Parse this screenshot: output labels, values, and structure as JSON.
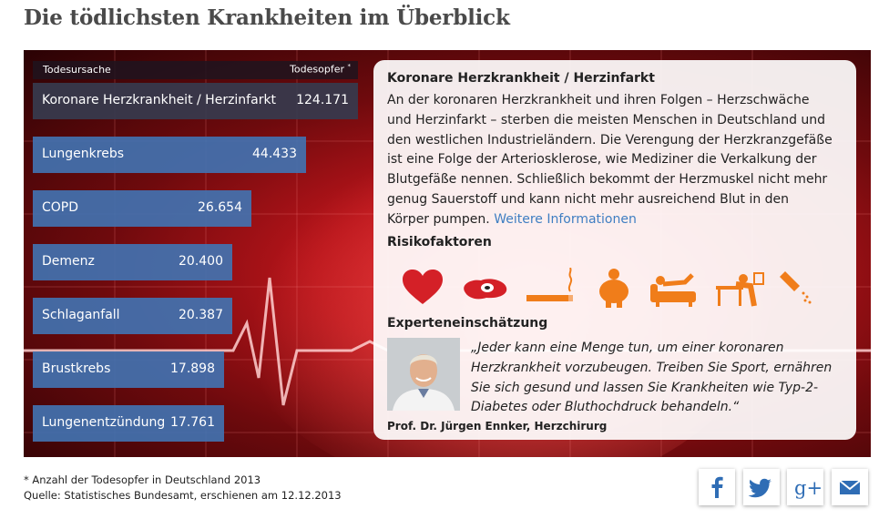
{
  "title": "Die tödlichsten Krankheiten im Überblick",
  "table": {
    "col_cause": "Todesursache",
    "col_deaths": "Todesopfer",
    "col_deaths_mark": "*",
    "rows": [
      {
        "label": "Koronare Herzkrankheit / Herzinfarkt",
        "value": "124.171",
        "deaths": 124171
      },
      {
        "label": "Lungenkrebs",
        "value": "44.433",
        "deaths": 44433
      },
      {
        "label": "COPD",
        "value": "26.654",
        "deaths": 26654
      },
      {
        "label": "Demenz",
        "value": "20.400",
        "deaths": 20400
      },
      {
        "label": "Schlaganfall",
        "value": "20.387",
        "deaths": 20387
      },
      {
        "label": "Brustkrebs",
        "value": "17.898",
        "deaths": 17898
      },
      {
        "label": "Lungenentzündung",
        "value": "17.761",
        "deaths": 17761
      }
    ]
  },
  "panel": {
    "title": "Koronare Herzkrankheit / Herzinfarkt",
    "text": "An der koronaren Herzkrankheit und ihren Folgen – Herzschwäche und Herzinfarkt – sterben die meisten Menschen in Deutschland und den westlichen Industrieländern. Die Verengung der Herzkranzgefäße ist eine Folge der Arteriosklerose, wie Mediziner die Verkalkung der Blutgefäße nennen. Schließlich bekommt der Herzmuskel nicht mehr genug Sauerstoff und kann nicht mehr ausreichend Blut in den Körper pumpen.",
    "link": "Weitere Informationen",
    "risk_title": "Risikofaktoren",
    "risk_icons": [
      "heart-icon",
      "egg-icon",
      "cigarette-icon",
      "obese-person-icon",
      "couch-person-icon",
      "desk-stress-icon",
      "salt-shaker-icon"
    ],
    "expert_title": "Experteneinschätzung",
    "quote": "„Jeder kann eine Menge tun, um einer koronaren Herzkrankheit vorzubeugen. Treiben Sie Sport, ernähren Sie sich gesund und lassen Sie Krankheiten wie Typ-2-Diabetes oder Bluthochdruck behandeln.“",
    "author": "Prof. Dr. Jürgen Ennker, Herzchirurg"
  },
  "footnote": {
    "line1": "* Anzahl der Todesopfer in Deutschland 2013",
    "line2": "Quelle: Statistisches Bundesamt, erschienen am 12.12.2013"
  },
  "share": [
    "facebook-icon",
    "twitter-icon",
    "google-plus-icon",
    "mail-icon"
  ],
  "colors": {
    "bar": "#4272b0",
    "bar_active": "#373a4e",
    "accent_orange": "#f07d1a",
    "icon_red": "#d42027",
    "link": "#3f7ec2"
  }
}
